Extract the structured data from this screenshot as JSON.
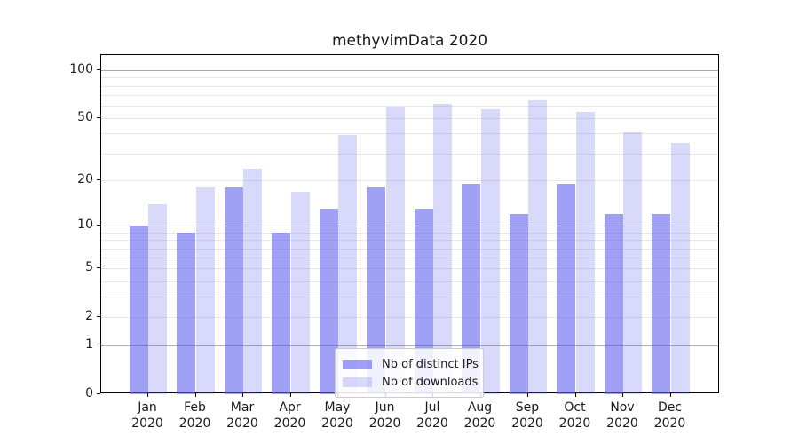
{
  "title": "methyvimData 2020",
  "chart_data": {
    "type": "bar",
    "title": "methyvimData 2020",
    "categories": [
      "Jan",
      "Feb",
      "Mar",
      "Apr",
      "May",
      "Jun",
      "Jul",
      "Aug",
      "Sep",
      "Oct",
      "Nov",
      "Dec"
    ],
    "year": "2020",
    "series": [
      {
        "name": "Nb of distinct IPs",
        "color": "rgba(102,102,238,0.62)",
        "values": [
          10,
          9,
          18,
          9,
          13,
          18,
          13,
          19,
          12,
          19,
          12,
          12
        ]
      },
      {
        "name": "Nb of downloads",
        "color": "rgba(102,102,238,0.25)",
        "values": [
          14,
          18,
          24,
          17,
          39,
          59,
          62,
          57,
          65,
          55,
          41,
          35
        ]
      }
    ],
    "yscale": "log10(value+1)",
    "ylim": [
      0,
      125
    ],
    "ytick_labels": [
      "0",
      "1",
      "2",
      "5",
      "10",
      "20",
      "50",
      "100"
    ],
    "ytick_values": [
      0,
      1,
      2,
      5,
      10,
      20,
      50,
      100
    ],
    "gridlines": {
      "major": [
        1,
        10,
        100
      ],
      "minor": [
        2,
        3,
        4,
        5,
        6,
        7,
        8,
        9,
        20,
        30,
        40,
        50,
        60,
        70,
        80,
        90
      ]
    },
    "grid": true,
    "legend_position": "lower center",
    "xlabel": "",
    "ylabel": ""
  },
  "legend": {
    "items": [
      "Nb of distinct IPs",
      "Nb of downloads"
    ]
  },
  "colors": {
    "bar_distinct_ips": "rgba(102,102,238,0.62)",
    "bar_downloads": "rgba(102,102,238,0.25)",
    "gridline_major": "#ababab",
    "gridline_minor": "#e7e7e7",
    "axis": "#000000",
    "background": "#ffffff"
  }
}
